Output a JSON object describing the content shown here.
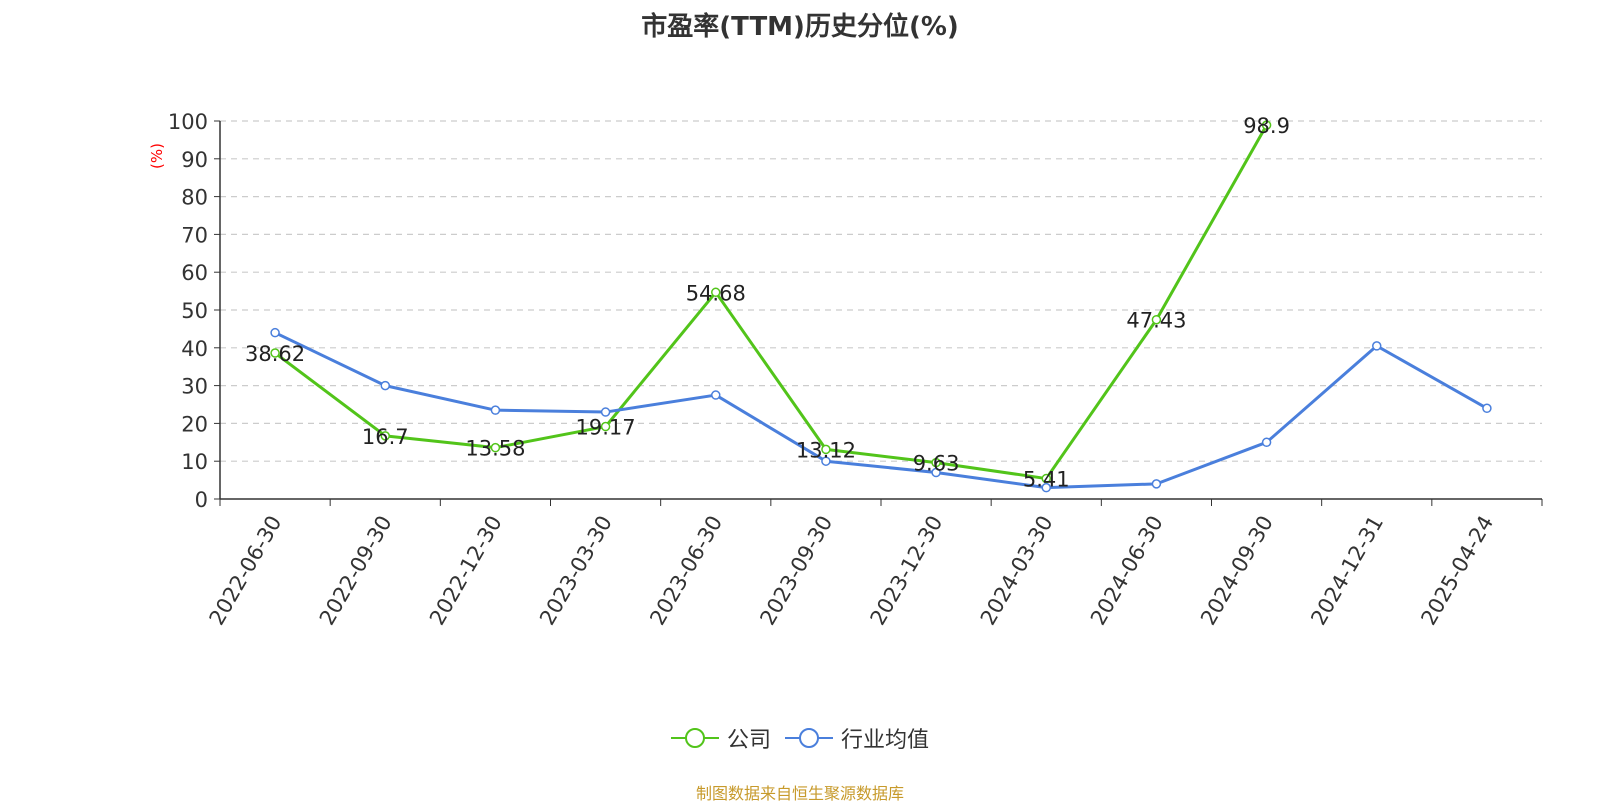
{
  "chart_data": {
    "type": "line",
    "title": "市盈率(TTM)历史分位(%)",
    "ylabel": "(%)",
    "xlabel": "",
    "ylim": [
      0,
      100
    ],
    "yticks": [
      0,
      10,
      20,
      30,
      40,
      50,
      60,
      70,
      80,
      90,
      100
    ],
    "categories": [
      "2022-06-30",
      "2022-09-30",
      "2022-12-30",
      "2023-03-30",
      "2023-06-30",
      "2023-09-30",
      "2023-12-30",
      "2024-03-30",
      "2024-06-30",
      "2024-09-30",
      "2024-12-31",
      "2025-04-24"
    ],
    "series": [
      {
        "name": "公司",
        "color": "#52c41a",
        "labels": true,
        "values": [
          38.62,
          16.7,
          13.58,
          19.17,
          54.68,
          13.12,
          9.63,
          5.41,
          47.43,
          98.9,
          null,
          null
        ]
      },
      {
        "name": "行业均值",
        "color": "#4a7fdc",
        "labels": false,
        "values": [
          44,
          30,
          23.5,
          23,
          27.5,
          10,
          7,
          3,
          4,
          15,
          40.5,
          24
        ]
      }
    ],
    "grid": true,
    "legend_position": "bottom"
  },
  "source": "制图数据来自恒生聚源数据库"
}
